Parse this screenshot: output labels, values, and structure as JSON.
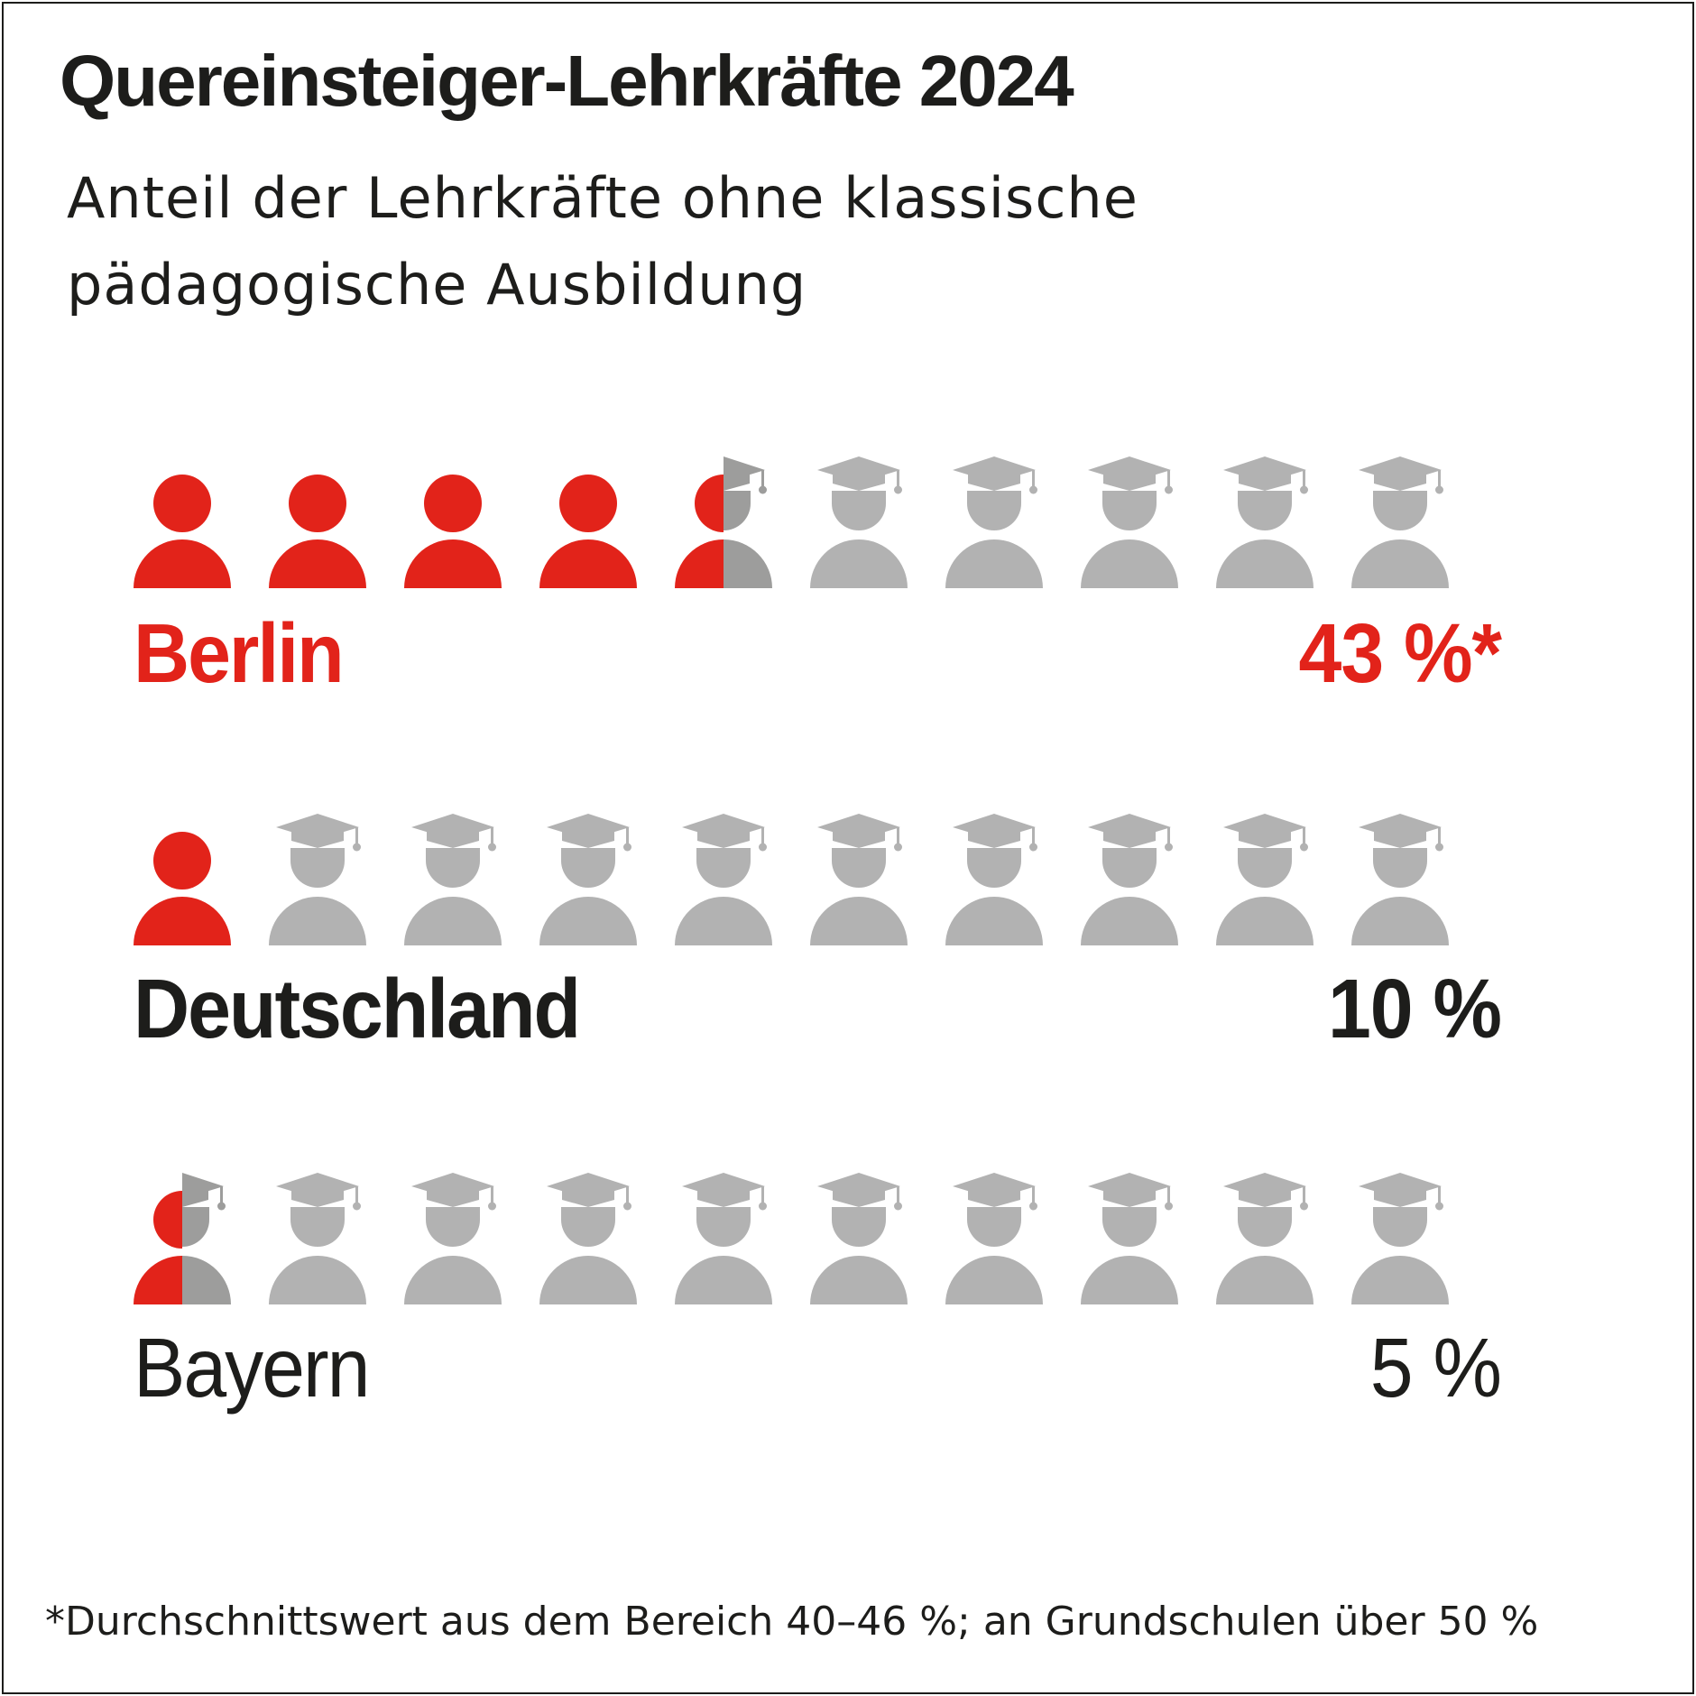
{
  "title": "Quereinsteiger-Lehrkräfte 2024",
  "subtitle": "Anteil der Lehrkräfte ohne klassische pädagogische Ausbildung",
  "footnote": "*Durchschnittswert aus dem Bereich 40–46 %; an Grundschulen über 50 %",
  "colors": {
    "highlight": "#e2231a",
    "neutral": "#b2b2b2",
    "neutral_overlay": "#9d9d9c",
    "text": "#1d1d1b",
    "cap_band": "#ffffff"
  },
  "icons": {
    "quereinsteiger": "person-icon",
    "teacher": "graduate-person-icon"
  },
  "chart_data": {
    "type": "pictogram",
    "icons_per_row": 10,
    "unit_label": "%",
    "series": [
      {
        "name": "Berlin",
        "value": 43,
        "filled_icons": 4.5,
        "value_label": "43 %*",
        "style": "highlight"
      },
      {
        "name": "Deutschland",
        "value": 10,
        "filled_icons": 1,
        "value_label": "10 %",
        "style": "bold"
      },
      {
        "name": "Bayern",
        "value": 5,
        "filled_icons": 0.5,
        "value_label": "5 %",
        "style": "regular"
      }
    ]
  }
}
